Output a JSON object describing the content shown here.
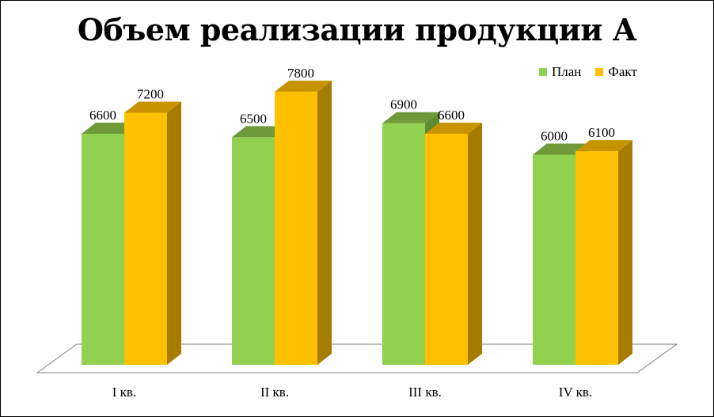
{
  "chart_data": {
    "type": "bar",
    "title": "Объем реализации продукции А",
    "categories": [
      "I кв.",
      "II кв.",
      "III кв.",
      "IV кв."
    ],
    "series": [
      {
        "name": "План",
        "values": [
          6600,
          6500,
          6900,
          6000
        ],
        "color": "#92D050",
        "top": "#6E9A3A",
        "side": "#5F8A30"
      },
      {
        "name": "Факт",
        "values": [
          7200,
          7800,
          6600,
          6100
        ],
        "color": "#FFC000",
        "top": "#C79400",
        "side": "#A57C00"
      }
    ],
    "ylim": [
      0,
      9000
    ],
    "legend_position": "top-right",
    "grid": false,
    "style": "3d-clustered-column"
  }
}
